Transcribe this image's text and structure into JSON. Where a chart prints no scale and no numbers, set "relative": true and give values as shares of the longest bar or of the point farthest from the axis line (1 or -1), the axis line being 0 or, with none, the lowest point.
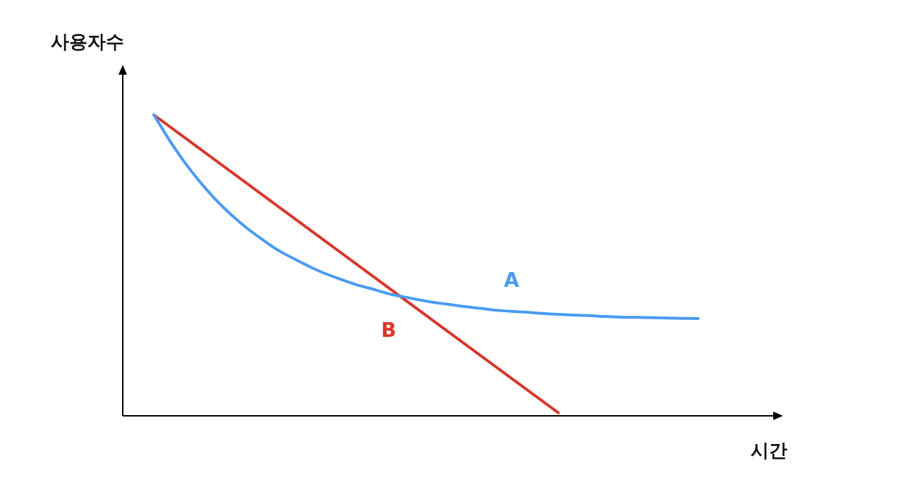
{
  "chart_data": {
    "type": "line",
    "relative": true,
    "xlabel": "시간",
    "ylabel": "사용자수",
    "grid": false,
    "legend": false,
    "marker": "none",
    "line_style": "solid",
    "categories": [
      null,
      null,
      null,
      null,
      null,
      null,
      null,
      null,
      null,
      null,
      null,
      null,
      null,
      null,
      null,
      null,
      null,
      null,
      null,
      null,
      null,
      null,
      null,
      null,
      null,
      null,
      null,
      null,
      null,
      null,
      null,
      null,
      null,
      null,
      null,
      null,
      null,
      null,
      null,
      null,
      null,
      null,
      null
    ],
    "series": [
      {
        "name": "A",
        "color": "#4a9bf2",
        "values": [
          null,
          null,
          1.0,
          0.916,
          0.841,
          0.775,
          0.717,
          0.667,
          0.623,
          0.585,
          0.55,
          0.522,
          0.496,
          0.473,
          0.454,
          0.436,
          0.422,
          0.407,
          0.396,
          0.386,
          0.377,
          0.37,
          0.363,
          0.357,
          0.351,
          0.347,
          0.344,
          0.34,
          0.337,
          0.335,
          0.333,
          0.33,
          0.328,
          0.327,
          0.326,
          0.325,
          0.324,
          0.323,
          null,
          null,
          null,
          null,
          null
        ]
      },
      {
        "name": "B",
        "color": "#d8372b",
        "values": [
          null,
          null,
          1.0,
          null,
          null,
          null,
          null,
          null,
          null,
          null,
          null,
          null,
          null,
          null,
          null,
          null,
          null,
          null,
          null,
          null,
          null,
          null,
          null,
          null,
          null,
          null,
          null,
          null,
          0.01,
          null,
          null,
          null,
          null,
          null,
          null,
          null,
          null,
          null,
          null,
          null,
          null,
          null,
          null
        ]
      }
    ]
  }
}
